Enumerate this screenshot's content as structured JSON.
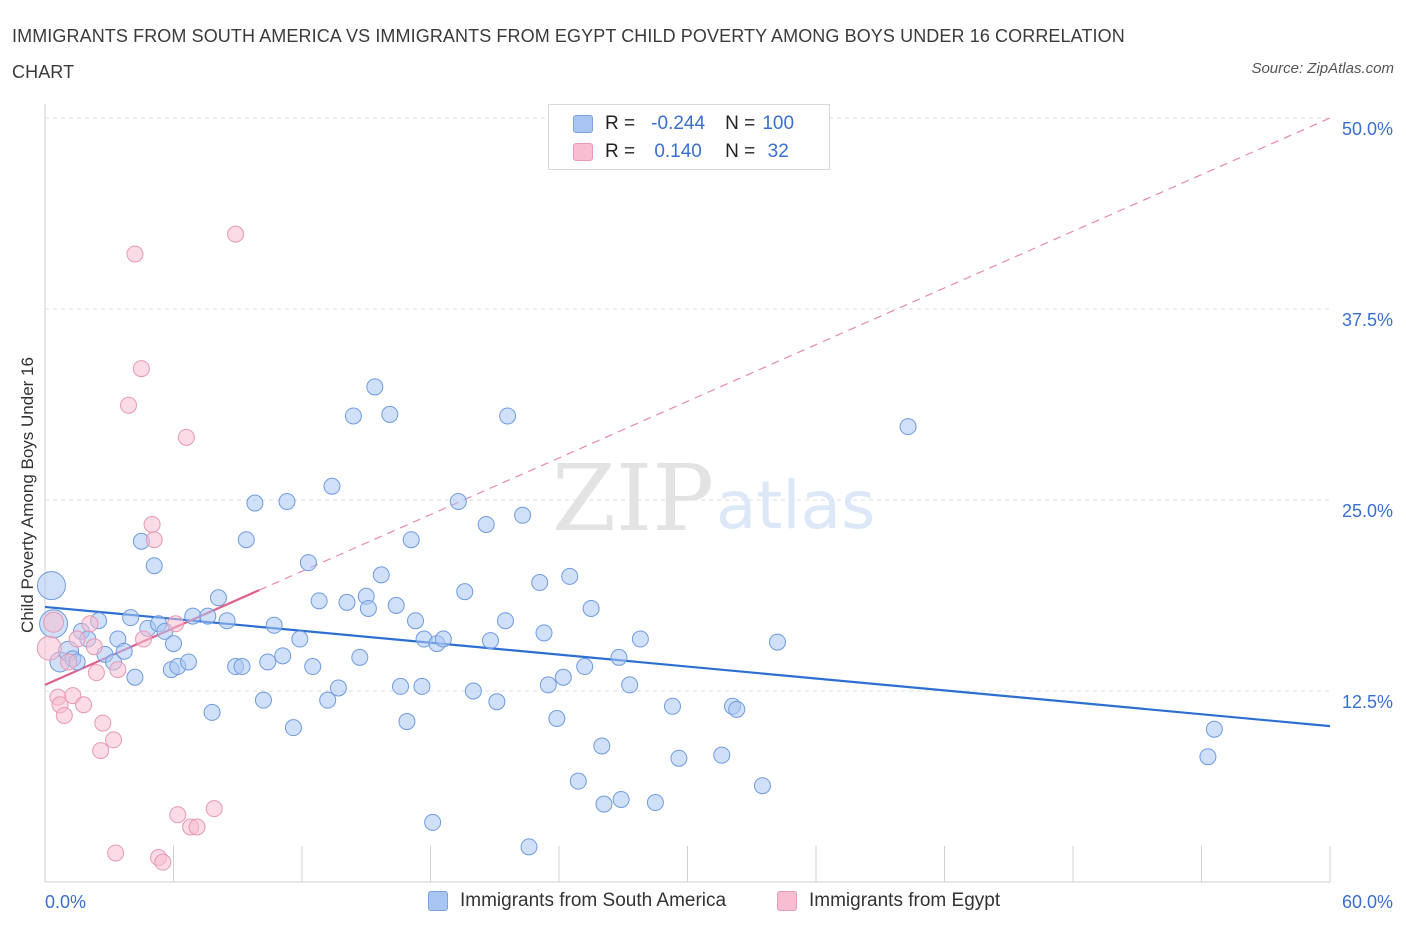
{
  "title": "IMMIGRANTS FROM SOUTH AMERICA VS IMMIGRANTS FROM EGYPT CHILD POVERTY AMONG BOYS UNDER 16 CORRELATION CHART",
  "source": "Source: ZipAtlas.com",
  "legend": {
    "rows": [
      {
        "r_label": "R =",
        "r_value": "-0.244",
        "n_label": "N =",
        "n_value": "100",
        "color": "#a9c6f2",
        "border": "#7aa3e0"
      },
      {
        "r_label": "R =",
        "r_value": "0.140",
        "n_label": "N =",
        "n_value": "32",
        "color": "#f7bdd0",
        "border": "#e99ab5"
      }
    ]
  },
  "watermark": {
    "zip": "ZIP",
    "atlas": "atlas"
  },
  "chart_data": {
    "type": "scatter",
    "title": "IMMIGRANTS FROM SOUTH AMERICA VS IMMIGRANTS FROM EGYPT CHILD POVERTY AMONG BOYS UNDER 16 CORRELATION CHART",
    "xlabel": "",
    "ylabel": "Child Poverty Among Boys Under 16",
    "xlim": [
      0,
      60
    ],
    "ylim": [
      0,
      50
    ],
    "x_tick_labels": [
      "0.0%",
      "60.0%"
    ],
    "y_ticks": [
      12.5,
      25.0,
      37.5,
      50.0
    ],
    "y_tick_labels": [
      "12.5%",
      "25.0%",
      "37.5%",
      "50.0%"
    ],
    "grid": true,
    "series": [
      {
        "name": "Immigrants from South America",
        "color": "#a9c6f2",
        "stroke": "#6f9be0",
        "trend": {
          "x": [
            0,
            60
          ],
          "y": [
            18.0,
            10.2
          ],
          "color": "#2d6fd0",
          "dashed": false
        },
        "points": [
          [
            0.3,
            19.4,
            14
          ],
          [
            0.4,
            16.9,
            14
          ],
          [
            0.7,
            14.4,
            10
          ],
          [
            1.1,
            15.1,
            10
          ],
          [
            1.3,
            14.6,
            8
          ],
          [
            1.5,
            14.4,
            8
          ],
          [
            1.7,
            16.4,
            8
          ],
          [
            2.0,
            15.9,
            8
          ],
          [
            2.5,
            17.1,
            8
          ],
          [
            2.8,
            14.9,
            8
          ],
          [
            3.2,
            14.4,
            8
          ],
          [
            3.4,
            15.9,
            8
          ],
          [
            3.7,
            15.1,
            8
          ],
          [
            4.0,
            17.3,
            8
          ],
          [
            4.2,
            13.4,
            8
          ],
          [
            4.5,
            22.3,
            8
          ],
          [
            4.8,
            16.6,
            8
          ],
          [
            5.1,
            20.7,
            8
          ],
          [
            5.3,
            16.9,
            8
          ],
          [
            5.6,
            16.4,
            8
          ],
          [
            5.9,
            13.9,
            8
          ],
          [
            6.0,
            15.6,
            8
          ],
          [
            6.2,
            14.1,
            8
          ],
          [
            6.7,
            14.4,
            8
          ],
          [
            6.9,
            17.4,
            8
          ],
          [
            7.6,
            17.4,
            8
          ],
          [
            7.8,
            11.1,
            8
          ],
          [
            8.1,
            18.6,
            8
          ],
          [
            8.5,
            17.1,
            8
          ],
          [
            8.9,
            14.1,
            8
          ],
          [
            9.2,
            14.1,
            8
          ],
          [
            9.4,
            22.4,
            8
          ],
          [
            9.8,
            24.8,
            8
          ],
          [
            10.2,
            11.9,
            8
          ],
          [
            10.4,
            14.4,
            8
          ],
          [
            10.7,
            16.8,
            8
          ],
          [
            11.1,
            14.8,
            8
          ],
          [
            11.3,
            24.9,
            8
          ],
          [
            11.6,
            10.1,
            8
          ],
          [
            11.9,
            15.9,
            8
          ],
          [
            12.3,
            20.9,
            8
          ],
          [
            12.5,
            14.1,
            8
          ],
          [
            12.8,
            18.4,
            8
          ],
          [
            13.2,
            11.9,
            8
          ],
          [
            13.4,
            25.9,
            8
          ],
          [
            13.7,
            12.7,
            8
          ],
          [
            14.1,
            18.3,
            8
          ],
          [
            14.4,
            30.5,
            8
          ],
          [
            14.7,
            14.7,
            8
          ],
          [
            15.0,
            18.7,
            8
          ],
          [
            15.1,
            17.9,
            8
          ],
          [
            15.4,
            32.4,
            8
          ],
          [
            15.7,
            20.1,
            8
          ],
          [
            16.1,
            30.6,
            8
          ],
          [
            16.4,
            18.1,
            8
          ],
          [
            16.6,
            12.8,
            8
          ],
          [
            16.9,
            10.5,
            8
          ],
          [
            17.1,
            22.4,
            8
          ],
          [
            17.3,
            17.1,
            8
          ],
          [
            17.6,
            12.8,
            8
          ],
          [
            17.7,
            15.9,
            8
          ],
          [
            18.1,
            3.9,
            8
          ],
          [
            18.3,
            15.6,
            8
          ],
          [
            18.6,
            15.9,
            8
          ],
          [
            19.3,
            24.9,
            8
          ],
          [
            19.6,
            19.0,
            8
          ],
          [
            20.0,
            12.5,
            8
          ],
          [
            20.6,
            23.4,
            8
          ],
          [
            20.8,
            15.8,
            8
          ],
          [
            21.1,
            11.8,
            8
          ],
          [
            21.5,
            17.1,
            8
          ],
          [
            21.6,
            30.5,
            8
          ],
          [
            22.3,
            24.0,
            8
          ],
          [
            22.6,
            2.3,
            8
          ],
          [
            23.1,
            19.6,
            8
          ],
          [
            23.3,
            16.3,
            8
          ],
          [
            23.5,
            12.9,
            8
          ],
          [
            23.9,
            10.7,
            8
          ],
          [
            24.2,
            13.4,
            8
          ],
          [
            24.5,
            20.0,
            8
          ],
          [
            24.9,
            6.6,
            8
          ],
          [
            25.2,
            14.1,
            8
          ],
          [
            25.5,
            17.9,
            8
          ],
          [
            26.0,
            8.9,
            8
          ],
          [
            26.1,
            5.1,
            8
          ],
          [
            26.8,
            14.7,
            8
          ],
          [
            26.9,
            5.4,
            8
          ],
          [
            27.3,
            12.9,
            8
          ],
          [
            27.8,
            15.9,
            8
          ],
          [
            28.5,
            5.2,
            8
          ],
          [
            29.3,
            11.5,
            8
          ],
          [
            29.6,
            8.1,
            8
          ],
          [
            31.6,
            8.3,
            8
          ],
          [
            32.1,
            11.5,
            8
          ],
          [
            32.3,
            11.3,
            8
          ],
          [
            33.5,
            6.3,
            8
          ],
          [
            34.2,
            15.7,
            8
          ],
          [
            40.3,
            29.8,
            8
          ],
          [
            54.3,
            8.2,
            8
          ],
          [
            54.6,
            10.0,
            8
          ]
        ]
      },
      {
        "name": "Immigrants from Egypt",
        "color": "#f7bdd0",
        "stroke": "#e699b3",
        "trend": {
          "x": [
            0,
            10
          ],
          "y": [
            12.9,
            19.1
          ],
          "color": "#e0608e",
          "dashed": false,
          "extension": {
            "x": [
              10,
              60
            ],
            "y": [
              19.1,
              50.0
            ],
            "color": "#e88aab",
            "dashed": true
          }
        },
        "points": [
          [
            0.2,
            15.3,
            12
          ],
          [
            0.4,
            17.0,
            10
          ],
          [
            0.6,
            12.1,
            8
          ],
          [
            0.7,
            11.6,
            8
          ],
          [
            0.9,
            10.9,
            8
          ],
          [
            1.1,
            14.4,
            8
          ],
          [
            1.3,
            12.2,
            8
          ],
          [
            1.5,
            15.9,
            8
          ],
          [
            1.8,
            11.6,
            8
          ],
          [
            2.1,
            16.9,
            8
          ],
          [
            2.3,
            15.4,
            8
          ],
          [
            2.4,
            13.7,
            8
          ],
          [
            2.6,
            8.6,
            8
          ],
          [
            2.7,
            10.4,
            8
          ],
          [
            3.2,
            9.3,
            8
          ],
          [
            3.3,
            1.9,
            8
          ],
          [
            3.4,
            13.9,
            8
          ],
          [
            3.9,
            31.2,
            8
          ],
          [
            4.2,
            41.1,
            8
          ],
          [
            4.5,
            33.6,
            8
          ],
          [
            4.6,
            15.9,
            8
          ],
          [
            5.0,
            23.4,
            8
          ],
          [
            5.1,
            22.4,
            8
          ],
          [
            5.3,
            1.6,
            8
          ],
          [
            5.5,
            1.3,
            8
          ],
          [
            6.2,
            4.4,
            8
          ],
          [
            6.6,
            29.1,
            8
          ],
          [
            6.8,
            3.6,
            8
          ],
          [
            7.1,
            3.6,
            8
          ],
          [
            7.9,
            4.8,
            8
          ],
          [
            8.9,
            42.4,
            8
          ],
          [
            6.1,
            16.9,
            8
          ]
        ]
      }
    ]
  },
  "bottom_legend": {
    "items": [
      {
        "label": "Immigrants from South America",
        "color": "#a9c6f2",
        "border": "#7aa3e0"
      },
      {
        "label": "Immigrants from Egypt",
        "color": "#f7bdd0",
        "border": "#e99ab5"
      }
    ]
  }
}
